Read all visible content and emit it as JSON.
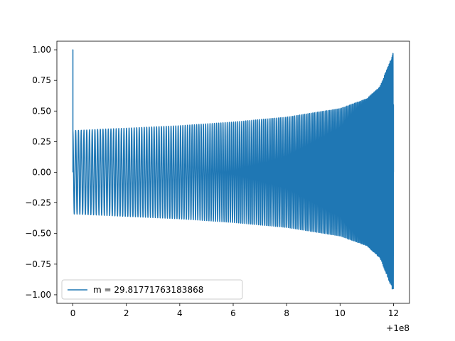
{
  "chart_data": {
    "type": "line",
    "title": "",
    "xlabel": "",
    "ylabel": "",
    "x_offset_label": "+1e8",
    "xlim": [
      -0.6,
      12.6
    ],
    "ylim": [
      -1.07,
      1.07
    ],
    "x_ticks": [
      0,
      2,
      4,
      6,
      8,
      10,
      12
    ],
    "x_tick_labels": [
      "0",
      "2",
      "4",
      "6",
      "8",
      "10",
      "12"
    ],
    "y_ticks": [
      1.0,
      0.75,
      0.5,
      0.25,
      0.0,
      -0.25,
      -0.5,
      -0.75,
      -1.0
    ],
    "y_tick_labels": [
      "1.00",
      "0.75",
      "0.50",
      "0.25",
      "0.00",
      "−0.25",
      "−0.50",
      "−0.75",
      "−1.00"
    ],
    "grid": false,
    "legend_position": "lower-left",
    "series": [
      {
        "name": "m = 29.81771763183868",
        "color": "#1f77b4",
        "description": "oscillating waveform with growing amplitude and frequency (chirp)",
        "envelope_x": [
          0,
          2,
          4,
          6,
          8,
          10,
          11,
          11.5,
          12
        ],
        "envelope_amplitude": [
          0.34,
          0.36,
          0.38,
          0.41,
          0.45,
          0.52,
          0.6,
          0.7,
          0.98
        ],
        "spike_x": 0,
        "spike_y": 1.0
      }
    ]
  }
}
